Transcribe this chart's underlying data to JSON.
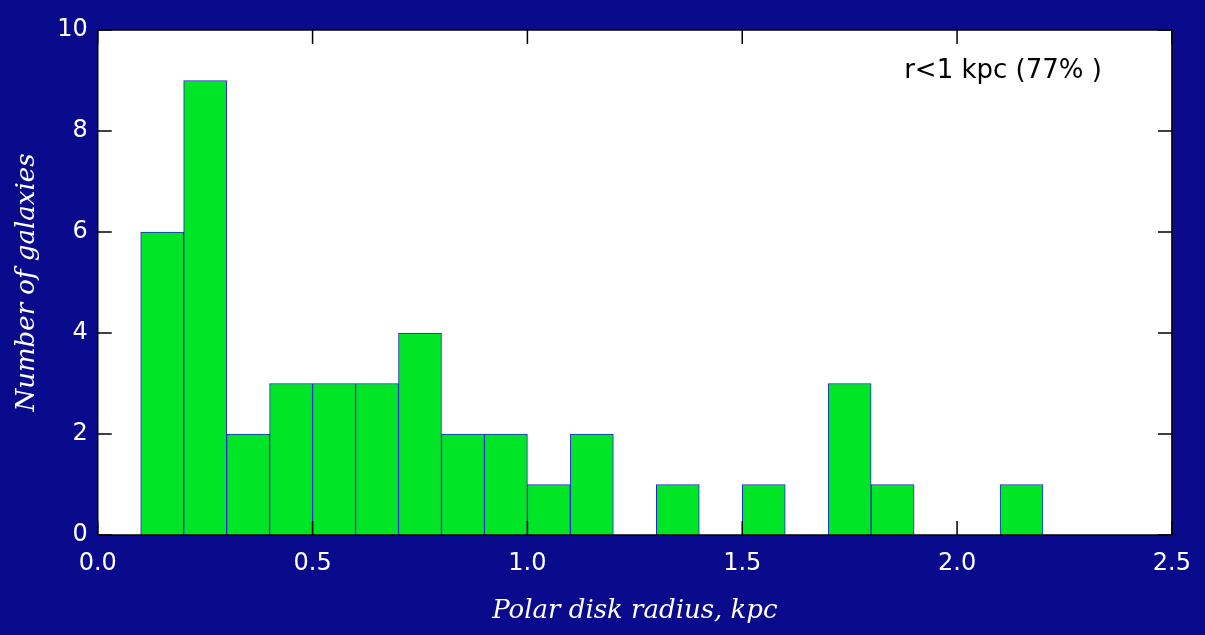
{
  "chart_data": {
    "type": "histogram",
    "xlabel": "Polar disk radius, kpc",
    "ylabel": "Number of galaxies",
    "bins": [
      0.1,
      0.2,
      0.3,
      0.4,
      0.5,
      0.6,
      0.7,
      0.8,
      0.9,
      1.0,
      1.1,
      1.2,
      1.3,
      1.4,
      1.5,
      1.6,
      1.7,
      1.8,
      1.9,
      2.0,
      2.1,
      2.2
    ],
    "values": [
      6,
      9,
      2,
      3,
      3,
      3,
      4,
      2,
      2,
      1,
      2,
      0,
      1,
      0,
      1,
      0,
      3,
      1,
      0,
      0,
      1
    ],
    "color": "#00e626",
    "xlim": [
      0,
      2.5
    ],
    "xticks": [
      {
        "value": 0,
        "label": "0.0"
      },
      {
        "value": 0.5,
        "label": "0.5"
      },
      {
        "value": 1,
        "label": "1.0"
      },
      {
        "value": 1.5,
        "label": "1.5"
      },
      {
        "value": 2,
        "label": "2.0"
      },
      {
        "value": 2.5,
        "label": "2.5"
      }
    ],
    "ylim": [
      0,
      10
    ],
    "yticks": [
      0,
      2,
      4,
      6,
      8,
      10
    ],
    "annotations": [
      "r<1 kpc (77% )"
    ]
  }
}
